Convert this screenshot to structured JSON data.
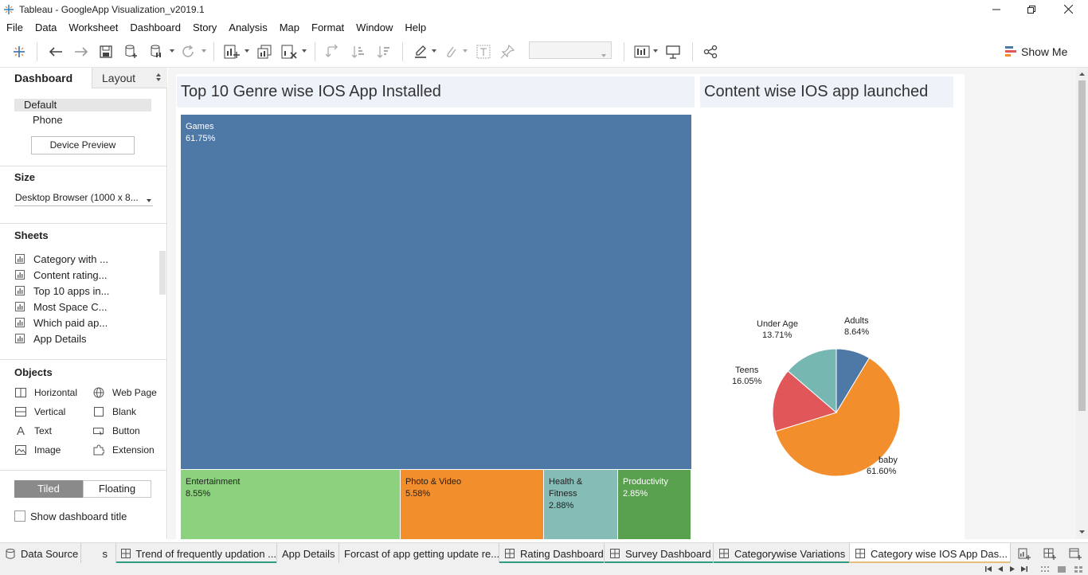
{
  "window": {
    "title": "Tableau - GoogleApp Visualization_v2019.1"
  },
  "menu": [
    "File",
    "Data",
    "Worksheet",
    "Dashboard",
    "Story",
    "Analysis",
    "Map",
    "Format",
    "Window",
    "Help"
  ],
  "toolbar": {
    "show_me_label": "Show Me"
  },
  "left_panel": {
    "tabs": {
      "dashboard": "Dashboard",
      "layout": "Layout"
    },
    "device_default": "Default",
    "device_phone": "Phone",
    "device_preview_label": "Device Preview",
    "size_heading": "Size",
    "size_value": "Desktop Browser (1000 x 8...",
    "sheets_heading": "Sheets",
    "sheets": [
      "Category with ...",
      "Content rating...",
      "Top 10 apps in...",
      "Most Space C...",
      "Which paid ap...",
      "App Details"
    ],
    "objects_heading": "Objects",
    "objects_left": [
      "Horizontal",
      "Vertical",
      "Text",
      "Image"
    ],
    "objects_right": [
      "Web Page",
      "Blank",
      "Button",
      "Extension"
    ],
    "tiled_label": "Tiled",
    "floating_label": "Floating",
    "show_title_label": "Show dashboard title"
  },
  "dashboard": {
    "treemap_title": "Top 10 Genre wise IOS App Installed",
    "pie_title": "Content wise IOS app launched"
  },
  "chart_data": [
    {
      "type": "treemap",
      "title": "Top 10 Genre wise IOS App Installed",
      "categories": [
        "Games",
        "Entertainment",
        "Photo & Video",
        "Health & Fitness",
        "Productivity"
      ],
      "labels": [
        "61.75%",
        "8.55%",
        "5.58%",
        "2.88%",
        "2.85%"
      ],
      "values": [
        61.75,
        8.55,
        5.58,
        2.88,
        2.85
      ],
      "colors": [
        "#4e79a7",
        "#8cd17d",
        "#f28e2b",
        "#86bcb6",
        "#59a14f"
      ]
    },
    {
      "type": "pie",
      "title": "Content wise IOS app launched",
      "categories": [
        "Adults",
        "baby",
        "Teens",
        "Under Age"
      ],
      "labels": [
        "8.64%",
        "61.60%",
        "16.05%",
        "13.71%"
      ],
      "values": [
        8.64,
        61.6,
        16.05,
        13.71
      ],
      "colors": [
        "#4e79a7",
        "#f28e2b",
        "#e15759",
        "#76b7b2"
      ]
    }
  ],
  "bottom_tabs": {
    "data_source": "Data Source",
    "partial": "s",
    "tabs": [
      "Trend of frequently updation ...",
      "App Details",
      "Forcast of app getting update re...",
      "Rating Dashboard",
      "Survey Dashboard",
      "Categorywise Variations",
      "Category wise IOS App Das..."
    ]
  }
}
